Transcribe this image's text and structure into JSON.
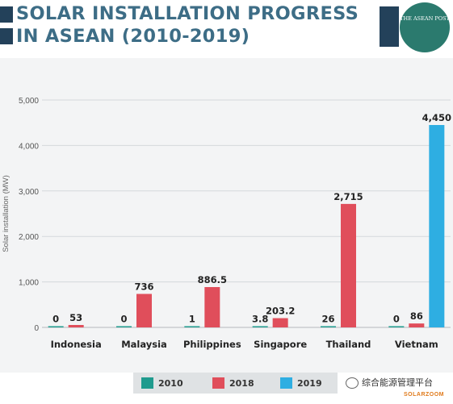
{
  "header": {
    "title_line1": "SOLAR INSTALLATION PROGRESS",
    "title_line2": "IN ASEAN (2010-2019)",
    "logo_text": "THE ASEAN POST"
  },
  "chart_data": {
    "type": "bar",
    "ylabel": "Solar installation (MW)",
    "ylim": [
      0,
      5000
    ],
    "yticks": [
      "0",
      "1,000",
      "2,000",
      "3,000",
      "4,000",
      "5,000"
    ],
    "categories": [
      "Indonesia",
      "Malaysia",
      "Philippines",
      "Singapore",
      "Thailand",
      "Vietnam"
    ],
    "series": [
      {
        "name": "2010",
        "color": "#1f9b8e",
        "values": [
          0,
          0,
          1,
          3.8,
          26,
          0
        ],
        "labels": [
          "0",
          "0",
          "1",
          "3.8",
          "26",
          "0"
        ]
      },
      {
        "name": "2018",
        "color": "#e04e5b",
        "values": [
          53,
          736,
          886.5,
          203.2,
          2715,
          86
        ],
        "labels": [
          "53",
          "736",
          "886.5",
          "203.2",
          "2,715",
          "86"
        ]
      },
      {
        "name": "2019",
        "color": "#2eaee2",
        "values": [
          null,
          null,
          null,
          null,
          null,
          4450
        ],
        "labels": [
          "",
          "",
          "",
          "",
          "",
          "4,450"
        ]
      }
    ],
    "grid": true,
    "legend": "bottom-center"
  },
  "watermark": {
    "text": "综合能源管理平台",
    "brand": "SOLARZOOM"
  }
}
